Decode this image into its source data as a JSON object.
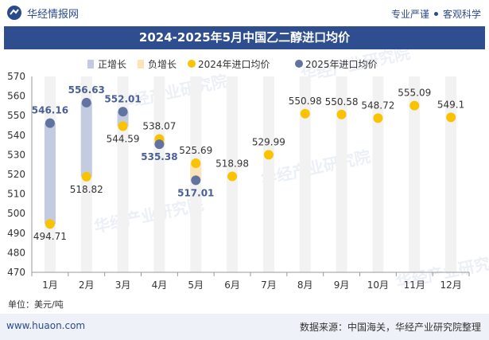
{
  "header": {
    "brand": "华经情报网",
    "tagline_left": "专业严谨",
    "tagline_right": "客观科学"
  },
  "chart_data": {
    "type": "line",
    "title": "2024-2025年5月中国乙二醇进口均价",
    "legend": {
      "placement": "top",
      "items": [
        {
          "name": "正增长",
          "color": "#c3cbe0",
          "shape": "rect"
        },
        {
          "name": "负增长",
          "color": "#fbe4b8",
          "shape": "rect"
        },
        {
          "name": "2024年进口均价",
          "color": "#f9c300",
          "shape": "circle"
        },
        {
          "name": "2025年进口均价",
          "color": "#6273a0",
          "shape": "circle"
        }
      ]
    },
    "categories": [
      "1月",
      "2月",
      "3月",
      "4月",
      "5月",
      "6月",
      "7月",
      "8月",
      "9月",
      "10月",
      "11月",
      "12月"
    ],
    "series": [
      {
        "name": "2024年进口均价",
        "color": "#f9c300",
        "values": [
          494.71,
          518.82,
          544.59,
          538.07,
          525.69,
          518.98,
          529.99,
          550.98,
          550.58,
          548.72,
          555.09,
          549.1
        ]
      },
      {
        "name": "2025年进口均价",
        "color": "#6273a0",
        "values": [
          546.16,
          556.63,
          552.01,
          535.38,
          517.01,
          null,
          null,
          null,
          null,
          null,
          null,
          null
        ]
      }
    ],
    "ylim": [
      470,
      570
    ],
    "yticks": [
      470,
      480,
      490,
      500,
      510,
      520,
      530,
      540,
      550,
      560,
      570
    ],
    "ylabel": "",
    "xlabel": "",
    "unit": "单位：美元/吨",
    "grid": false
  },
  "footer": {
    "website": "www.huaon.com",
    "source": "数据来源：中国海关，华经产业研究院整理"
  },
  "watermark": "华经产业研究院"
}
